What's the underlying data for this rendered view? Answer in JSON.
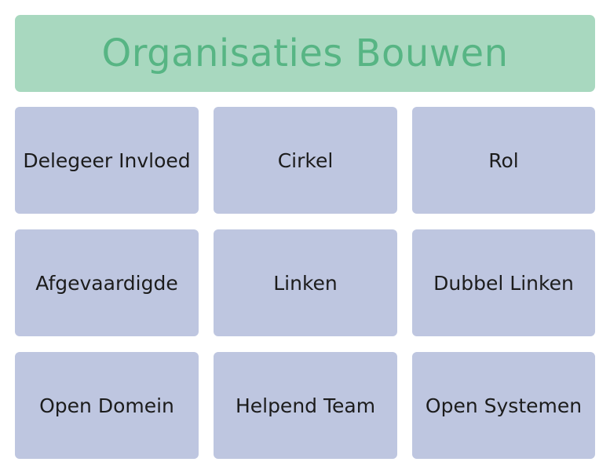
{
  "header": {
    "title": "Organisaties Bouwen"
  },
  "tiles": [
    {
      "label": "Delegeer Invloed"
    },
    {
      "label": "Cirkel"
    },
    {
      "label": "Rol"
    },
    {
      "label": "Afgevaardigde"
    },
    {
      "label": "Linken"
    },
    {
      "label": "Dubbel Linken"
    },
    {
      "label": "Open Domein"
    },
    {
      "label": "Helpend Team"
    },
    {
      "label": "Open Systemen"
    }
  ],
  "colors": {
    "header_background": "#a8d8bf",
    "header_text": "#57b584",
    "tile_background": "#bec6e0",
    "tile_text": "#1c1c1c"
  }
}
